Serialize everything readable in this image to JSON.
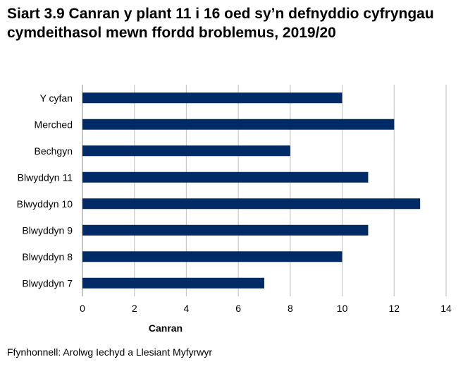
{
  "chart_data": {
    "type": "bar",
    "orientation": "horizontal",
    "title": "Siart 3.9 Canran y plant 11 i 16 oed sy’n defnyddio cyfryngau cymdeithasol mewn ffordd broblemus, 2019/20",
    "categories": [
      "Y cyfan",
      "Merched",
      "Bechgyn",
      "Blwyddyn 11",
      "Blwyddyn 10",
      "Blwyddyn 9",
      "Blwyddyn 8",
      "Blwyddyn 7"
    ],
    "values": [
      10,
      12,
      8,
      11,
      13,
      11,
      10,
      7
    ],
    "xlabel": "Canran",
    "ylabel": "",
    "xlim": [
      0,
      14
    ],
    "xticks": [
      0,
      2,
      4,
      6,
      8,
      10,
      12,
      14
    ],
    "grid": "vertical",
    "bar_color": "#002b66",
    "grid_color": "#c8c8c8"
  },
  "source": "Ffynhonnell: Arolwg Iechyd a Llesiant Myfyrwyr"
}
